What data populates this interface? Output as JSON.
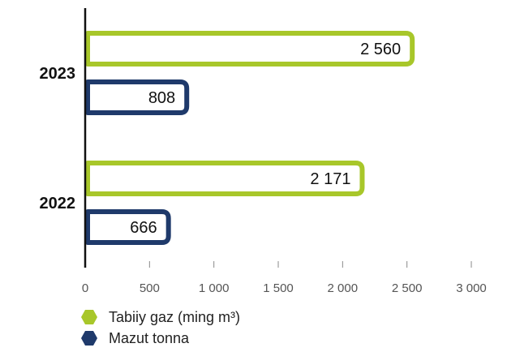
{
  "chart_data": {
    "type": "bar",
    "orientation": "horizontal",
    "categories": [
      "2023",
      "2022"
    ],
    "series": [
      {
        "name": "Tabiiy gaz (ming m³)",
        "values": [
          2560,
          2171
        ],
        "labels": [
          "2 560",
          "2 171"
        ],
        "color": "#A8C72A"
      },
      {
        "name": "Mazut tonna",
        "values": [
          808,
          666
        ],
        "labels": [
          "808",
          "666"
        ],
        "color": "#1F3A6B"
      }
    ],
    "xlim": [
      0,
      3000
    ],
    "xticks": [
      0,
      500,
      1000,
      1500,
      2000,
      2500,
      3000
    ],
    "xtick_labels": [
      "0",
      "500",
      "1 000",
      "1 500",
      "2 000",
      "2 500",
      "3 000"
    ],
    "grid": false,
    "legend_position": "bottom-left"
  },
  "legend": [
    {
      "label": "Tabiiy gaz (ming m³)",
      "color": "#A8C72A",
      "icon": "hexagon-icon"
    },
    {
      "label": "Mazut tonna",
      "color": "#1F3A6B",
      "icon": "hexagon-icon"
    }
  ]
}
